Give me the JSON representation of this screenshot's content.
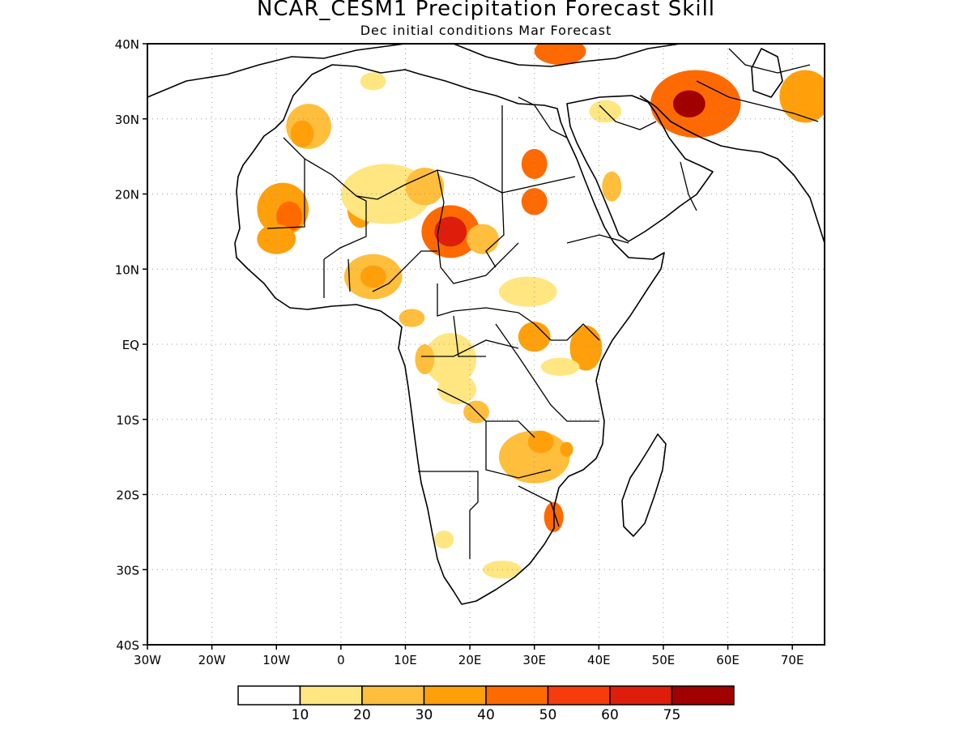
{
  "title": "NCAR_CESM1 Precipitation Forecast Skill",
  "subtitle": "Dec initial conditions  Mar Forecast",
  "map": {
    "lon_range": [
      -30,
      75
    ],
    "lat_range": [
      -40,
      40
    ],
    "grid": true,
    "lat_ticks": [
      {
        "lat": 40,
        "label": "40N"
      },
      {
        "lat": 30,
        "label": "30N"
      },
      {
        "lat": 20,
        "label": "20N"
      },
      {
        "lat": 10,
        "label": "10N"
      },
      {
        "lat": 0,
        "label": "EQ"
      },
      {
        "lat": -10,
        "label": "10S"
      },
      {
        "lat": -20,
        "label": "20S"
      },
      {
        "lat": -30,
        "label": "30S"
      },
      {
        "lat": -40,
        "label": "40S"
      }
    ],
    "lon_ticks": [
      {
        "lon": -30,
        "label": "30W"
      },
      {
        "lon": -20,
        "label": "20W"
      },
      {
        "lon": -10,
        "label": "10W"
      },
      {
        "lon": 0,
        "label": "0"
      },
      {
        "lon": 10,
        "label": "10E"
      },
      {
        "lon": 20,
        "label": "20E"
      },
      {
        "lon": 30,
        "label": "30E"
      },
      {
        "lon": 40,
        "label": "40E"
      },
      {
        "lon": 50,
        "label": "50E"
      },
      {
        "lon": 60,
        "label": "60E"
      },
      {
        "lon": 70,
        "label": "70E"
      }
    ]
  },
  "colorbar": {
    "colors": [
      "#ffffff",
      "#ffe680",
      "#ffbe3c",
      "#ffa00a",
      "#ff6a00",
      "#f53c0a",
      "#dc1e0a",
      "#a00000"
    ],
    "labels": [
      "10",
      "20",
      "30",
      "40",
      "50",
      "60",
      "75"
    ]
  },
  "skill_regions": [
    {
      "lon": -9,
      "lat": 18,
      "rx": 4,
      "ry": 3.5,
      "level": 3
    },
    {
      "lon": -8,
      "lat": 17,
      "rx": 2,
      "ry": 2,
      "level": 4
    },
    {
      "lon": -10,
      "lat": 14,
      "rx": 3,
      "ry": 2,
      "level": 3
    },
    {
      "lon": -5,
      "lat": 29,
      "rx": 3.5,
      "ry": 3,
      "level": 2
    },
    {
      "lon": -6,
      "lat": 28,
      "rx": 1.8,
      "ry": 1.8,
      "level": 3
    },
    {
      "lon": 3,
      "lat": 18,
      "rx": 2,
      "ry": 2.5,
      "level": 3
    },
    {
      "lon": 7,
      "lat": 20,
      "rx": 7,
      "ry": 4,
      "level": 1
    },
    {
      "lon": 13,
      "lat": 21,
      "rx": 3,
      "ry": 2.5,
      "level": 2
    },
    {
      "lon": 17,
      "lat": 15,
      "rx": 4.5,
      "ry": 3.5,
      "level": 4
    },
    {
      "lon": 17,
      "lat": 15,
      "rx": 2.5,
      "ry": 2,
      "level": 6
    },
    {
      "lon": 5,
      "lat": 9,
      "rx": 4.5,
      "ry": 3,
      "level": 2
    },
    {
      "lon": 5,
      "lat": 9,
      "rx": 2,
      "ry": 1.5,
      "level": 3
    },
    {
      "lon": 30,
      "lat": 24,
      "rx": 2,
      "ry": 2,
      "level": 4
    },
    {
      "lon": 30,
      "lat": 19,
      "rx": 2,
      "ry": 1.8,
      "level": 4
    },
    {
      "lon": 22,
      "lat": 14,
      "rx": 2.5,
      "ry": 2,
      "level": 2
    },
    {
      "lon": 29,
      "lat": 7,
      "rx": 4.5,
      "ry": 2,
      "level": 1
    },
    {
      "lon": 11,
      "lat": 3.5,
      "rx": 2,
      "ry": 1.2,
      "level": 2
    },
    {
      "lon": 30,
      "lat": 1,
      "rx": 2.5,
      "ry": 2,
      "level": 3
    },
    {
      "lon": 38,
      "lat": -0.5,
      "rx": 2.5,
      "ry": 3,
      "level": 3
    },
    {
      "lon": 34,
      "lat": -3,
      "rx": 3,
      "ry": 1.2,
      "level": 1
    },
    {
      "lon": 17,
      "lat": -2,
      "rx": 4,
      "ry": 3.5,
      "level": 1
    },
    {
      "lon": 18,
      "lat": -6,
      "rx": 3,
      "ry": 2,
      "level": 1
    },
    {
      "lon": 13,
      "lat": -2,
      "rx": 1.5,
      "ry": 2,
      "level": 2
    },
    {
      "lon": 21,
      "lat": -9,
      "rx": 2,
      "ry": 1.5,
      "level": 2
    },
    {
      "lon": 30,
      "lat": -15,
      "rx": 5.5,
      "ry": 3.5,
      "level": 2
    },
    {
      "lon": 31,
      "lat": -13,
      "rx": 2,
      "ry": 1.5,
      "level": 3
    },
    {
      "lon": 35,
      "lat": -14,
      "rx": 1,
      "ry": 1,
      "level": 3
    },
    {
      "lon": 33,
      "lat": -23,
      "rx": 1.5,
      "ry": 2,
      "level": 4
    },
    {
      "lon": 25,
      "lat": -30,
      "rx": 3,
      "ry": 1.2,
      "level": 1
    },
    {
      "lon": 16,
      "lat": -26,
      "rx": 1.5,
      "ry": 1.2,
      "level": 1
    },
    {
      "lon": 55,
      "lat": 32,
      "rx": 7,
      "ry": 4.5,
      "level": 4
    },
    {
      "lon": 54,
      "lat": 32,
      "rx": 2.5,
      "ry": 1.8,
      "level": 7
    },
    {
      "lon": 72,
      "lat": 33,
      "rx": 4,
      "ry": 3.5,
      "level": 3
    },
    {
      "lon": 34,
      "lat": 39,
      "rx": 4,
      "ry": 1.8,
      "level": 4
    },
    {
      "lon": 41,
      "lat": 31,
      "rx": 2.5,
      "ry": 1.5,
      "level": 1
    },
    {
      "lon": 42,
      "lat": 21,
      "rx": 1.5,
      "ry": 2,
      "level": 2
    },
    {
      "lon": 5,
      "lat": 35,
      "rx": 2,
      "ry": 1.2,
      "level": 1
    }
  ]
}
